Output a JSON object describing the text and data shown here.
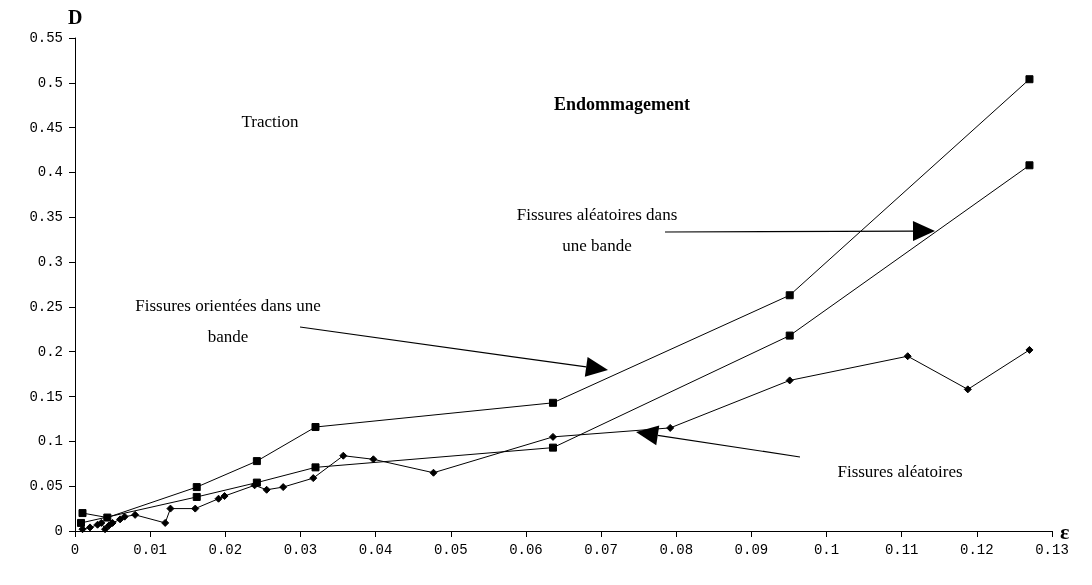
{
  "chart_data": {
    "type": "line",
    "title": "Endommagement",
    "xlabel": "ε",
    "ylabel": "D",
    "annotations": [
      "Traction",
      "Fissures orientées dans une bande",
      "Fissures aléatoires dans une bande",
      "Fissures aléatoires"
    ],
    "xlim": [
      0,
      0.13
    ],
    "xticks": [
      0,
      0.01,
      0.02,
      0.03,
      0.04,
      0.05,
      0.06,
      0.07,
      0.08,
      0.09,
      0.1,
      0.11,
      0.12,
      0.13
    ],
    "ylim": [
      0,
      0.55
    ],
    "yticks": [
      0,
      0.05,
      0.1,
      0.15,
      0.2,
      0.25,
      0.3,
      0.35,
      0.4,
      0.45,
      0.5,
      0.55
    ],
    "grid": false,
    "line_style": "solid",
    "series": [
      {
        "color": "#000000",
        "marker": "square",
        "x": [
          0.001,
          0.0043,
          0.0162,
          0.0242,
          0.032,
          0.0636,
          0.0951,
          0.127
        ],
        "values": [
          0.02,
          0.015,
          0.049,
          0.078,
          0.116,
          0.143,
          0.263,
          0.504
        ]
      },
      {
        "color": "#000000",
        "marker": "square",
        "x": [
          0.0008,
          0.0162,
          0.0242,
          0.032,
          0.0636,
          0.0951,
          0.127
        ],
        "values": [
          0.009,
          0.038,
          0.054,
          0.071,
          0.093,
          0.218,
          0.408
        ]
      },
      {
        "color": "#000000",
        "marker": "diamond",
        "x": [
          0.001,
          0.002,
          0.003,
          0.0035,
          0.004,
          0.0045,
          0.005,
          0.006,
          0.0066,
          0.008,
          0.012,
          0.0127,
          0.016,
          0.0191,
          0.0199,
          0.0239,
          0.0255,
          0.0277,
          0.0317,
          0.0357,
          0.0397,
          0.0477,
          0.0636,
          0.0792,
          0.0951,
          0.1108,
          0.1188,
          0.127
        ],
        "values": [
          0.002,
          0.004,
          0.007,
          0.009,
          0.002,
          0.006,
          0.009,
          0.013,
          0.016,
          0.018,
          0.009,
          0.025,
          0.025,
          0.036,
          0.039,
          0.051,
          0.046,
          0.049,
          0.059,
          0.084,
          0.08,
          0.065,
          0.105,
          0.115,
          0.168,
          0.195,
          0.158,
          0.202
        ]
      }
    ]
  }
}
